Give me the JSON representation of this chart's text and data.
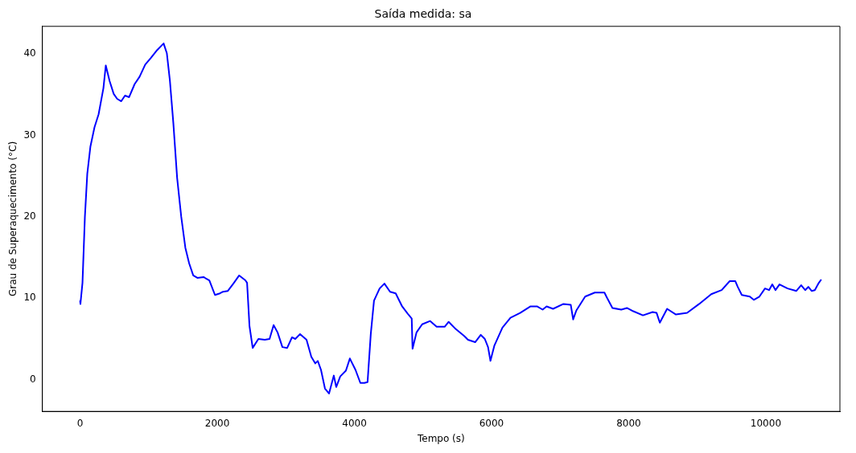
{
  "chart_data": {
    "type": "line",
    "title": "Saída medida: sa",
    "xlabel": "Tempo (s)",
    "ylabel": "Grau de Superaquecimento (°C)",
    "xlim": [
      -550,
      11080
    ],
    "xticks": [
      0,
      2000,
      4000,
      6000,
      8000,
      10000
    ],
    "ylim": [
      -3.9,
      43.4
    ],
    "yticks": [
      0,
      10,
      20,
      30,
      40
    ],
    "grid": false,
    "legend": false,
    "marker": "none",
    "line_style": "solid",
    "x": [
      0,
      5,
      35,
      70,
      105,
      150,
      210,
      270,
      340,
      375,
      430,
      490,
      540,
      600,
      655,
      715,
      795,
      867,
      950,
      1030,
      1125,
      1218,
      1265,
      1310,
      1360,
      1415,
      1475,
      1535,
      1590,
      1650,
      1710,
      1800,
      1885,
      1967,
      2040,
      2085,
      2155,
      2235,
      2320,
      2410,
      2435,
      2470,
      2517,
      2600,
      2693,
      2763,
      2822,
      2880,
      2950,
      3020,
      3090,
      3138,
      3208,
      3302,
      3372,
      3430,
      3466,
      3513,
      3571,
      3630,
      3700,
      3735,
      3794,
      3876,
      3934,
      4016,
      4087,
      4145,
      4192,
      4239,
      4286,
      4368,
      4438,
      4520,
      4602,
      4696,
      4778,
      4836,
      4848,
      4906,
      4988,
      5105,
      5199,
      5316,
      5375,
      5480,
      5597,
      5656,
      5761,
      5843,
      5902,
      5949,
      5984,
      6042,
      6159,
      6276,
      6417,
      6569,
      6663,
      6745,
      6803,
      6897,
      7049,
      7155,
      7190,
      7237,
      7365,
      7506,
      7646,
      7681,
      7763,
      7892,
      7974,
      8068,
      8208,
      8349,
      8407,
      8454,
      8560,
      8689,
      8852,
      9028,
      9204,
      9356,
      9473,
      9555,
      9590,
      9649,
      9766,
      9824,
      9906,
      9988,
      10047,
      10094,
      10141,
      10199,
      10316,
      10445,
      10515,
      10574,
      10620,
      10667,
      10714,
      10773,
      10808
    ],
    "series": [
      {
        "color": "#0000ff",
        "values": [
          9.7,
          9.3,
          11.9,
          20,
          25.3,
          28.6,
          31,
          32.6,
          35.8,
          38.6,
          36.7,
          35.1,
          34.5,
          34.2,
          34.9,
          34.7,
          36.3,
          37.2,
          38.7,
          39.5,
          40.5,
          41.3,
          40.1,
          36.7,
          31.5,
          24.8,
          20,
          16.2,
          14.3,
          12.8,
          12.5,
          12.6,
          12.2,
          10.4,
          10.6,
          10.8,
          10.9,
          11.8,
          12.8,
          12.2,
          11.9,
          6.6,
          3.9,
          5,
          4.9,
          5,
          6.7,
          5.8,
          4,
          3.9,
          5.2,
          5,
          5.6,
          4.9,
          2.8,
          2,
          2.3,
          1.2,
          -1.1,
          -1.7,
          0.5,
          -0.9,
          0.4,
          1.1,
          2.6,
          1.2,
          -0.4,
          -0.4,
          -0.3,
          5.6,
          9.7,
          11.2,
          11.8,
          10.8,
          10.6,
          9,
          8.1,
          7.5,
          3.8,
          5.8,
          6.8,
          7.2,
          6.5,
          6.5,
          7.1,
          6.2,
          5.4,
          4.9,
          4.6,
          5.5,
          5,
          4,
          2.3,
          4.2,
          6.4,
          7.6,
          8.2,
          9,
          9,
          8.6,
          9,
          8.7,
          9.3,
          9.2,
          7.4,
          8.5,
          10.2,
          10.7,
          10.7,
          10.1,
          8.8,
          8.6,
          8.8,
          8.4,
          7.9,
          8.3,
          8.2,
          7,
          8.7,
          8,
          8.2,
          9.3,
          10.5,
          11,
          12.1,
          12.1,
          11.4,
          10.4,
          10.2,
          9.8,
          10.2,
          11.2,
          11,
          11.7,
          11,
          11.7,
          11.2,
          10.9,
          11.6,
          11,
          11.4,
          10.9,
          11,
          11.9,
          12.3
        ]
      }
    ]
  }
}
